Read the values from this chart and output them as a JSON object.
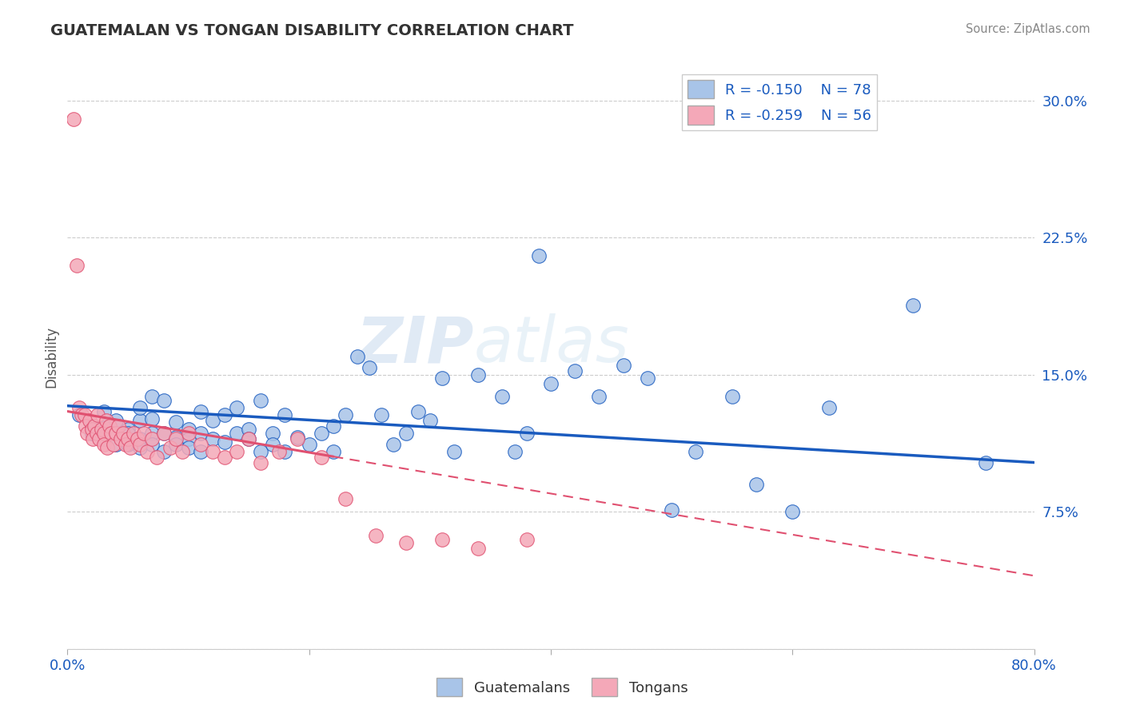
{
  "title": "GUATEMALAN VS TONGAN DISABILITY CORRELATION CHART",
  "source": "Source: ZipAtlas.com",
  "ylabel": "Disability",
  "xlim": [
    0.0,
    0.8
  ],
  "ylim": [
    0.0,
    0.32
  ],
  "yticks": [
    0.0,
    0.075,
    0.15,
    0.225,
    0.3
  ],
  "ytick_labels": [
    "",
    "7.5%",
    "15.0%",
    "22.5%",
    "30.0%"
  ],
  "xticks": [
    0.0,
    0.2,
    0.4,
    0.6,
    0.8
  ],
  "xtick_labels": [
    "0.0%",
    "",
    "",
    "",
    "80.0%"
  ],
  "legend_blue_label": "R = -0.150    N = 78",
  "legend_pink_label": "R = -0.259    N = 56",
  "bottom_legend_blue": "Guatemalans",
  "bottom_legend_pink": "Tongans",
  "blue_color": "#a8c4e8",
  "pink_color": "#f4a8b8",
  "line_blue": "#1a5bbf",
  "line_pink": "#e05070",
  "watermark_zip": "ZIP",
  "watermark_atlas": "atlas",
  "blue_scatter_x": [
    0.01,
    0.02,
    0.02,
    0.03,
    0.03,
    0.03,
    0.04,
    0.04,
    0.05,
    0.05,
    0.05,
    0.06,
    0.06,
    0.06,
    0.06,
    0.07,
    0.07,
    0.07,
    0.07,
    0.08,
    0.08,
    0.08,
    0.09,
    0.09,
    0.09,
    0.1,
    0.1,
    0.1,
    0.11,
    0.11,
    0.11,
    0.12,
    0.12,
    0.13,
    0.13,
    0.14,
    0.14,
    0.15,
    0.15,
    0.16,
    0.16,
    0.17,
    0.17,
    0.18,
    0.18,
    0.19,
    0.2,
    0.21,
    0.22,
    0.22,
    0.23,
    0.24,
    0.25,
    0.26,
    0.27,
    0.28,
    0.29,
    0.3,
    0.31,
    0.32,
    0.34,
    0.36,
    0.37,
    0.38,
    0.39,
    0.4,
    0.42,
    0.44,
    0.46,
    0.48,
    0.5,
    0.52,
    0.55,
    0.57,
    0.6,
    0.63,
    0.7,
    0.76
  ],
  "blue_scatter_y": [
    0.128,
    0.118,
    0.122,
    0.13,
    0.121,
    0.115,
    0.125,
    0.112,
    0.12,
    0.118,
    0.112,
    0.115,
    0.125,
    0.132,
    0.11,
    0.118,
    0.126,
    0.112,
    0.138,
    0.108,
    0.118,
    0.136,
    0.116,
    0.124,
    0.112,
    0.12,
    0.115,
    0.11,
    0.108,
    0.13,
    0.118,
    0.125,
    0.115,
    0.128,
    0.113,
    0.118,
    0.132,
    0.12,
    0.115,
    0.108,
    0.136,
    0.118,
    0.112,
    0.128,
    0.108,
    0.116,
    0.112,
    0.118,
    0.122,
    0.108,
    0.128,
    0.16,
    0.154,
    0.128,
    0.112,
    0.118,
    0.13,
    0.125,
    0.148,
    0.108,
    0.15,
    0.138,
    0.108,
    0.118,
    0.215,
    0.145,
    0.152,
    0.138,
    0.155,
    0.148,
    0.076,
    0.108,
    0.138,
    0.09,
    0.075,
    0.132,
    0.188,
    0.102
  ],
  "pink_scatter_x": [
    0.005,
    0.008,
    0.01,
    0.012,
    0.014,
    0.015,
    0.016,
    0.018,
    0.02,
    0.021,
    0.022,
    0.024,
    0.025,
    0.026,
    0.028,
    0.03,
    0.03,
    0.032,
    0.033,
    0.035,
    0.036,
    0.038,
    0.04,
    0.042,
    0.044,
    0.046,
    0.048,
    0.05,
    0.052,
    0.055,
    0.058,
    0.06,
    0.063,
    0.066,
    0.07,
    0.074,
    0.08,
    0.085,
    0.09,
    0.095,
    0.1,
    0.11,
    0.12,
    0.13,
    0.14,
    0.15,
    0.16,
    0.175,
    0.19,
    0.21,
    0.23,
    0.255,
    0.28,
    0.31,
    0.34,
    0.38
  ],
  "pink_scatter_y": [
    0.29,
    0.21,
    0.132,
    0.128,
    0.128,
    0.122,
    0.118,
    0.125,
    0.12,
    0.115,
    0.122,
    0.118,
    0.128,
    0.115,
    0.12,
    0.118,
    0.112,
    0.125,
    0.11,
    0.122,
    0.118,
    0.112,
    0.118,
    0.122,
    0.115,
    0.118,
    0.112,
    0.115,
    0.11,
    0.118,
    0.115,
    0.112,
    0.118,
    0.108,
    0.115,
    0.105,
    0.118,
    0.11,
    0.115,
    0.108,
    0.118,
    0.112,
    0.108,
    0.105,
    0.108,
    0.115,
    0.102,
    0.108,
    0.115,
    0.105,
    0.082,
    0.062,
    0.058,
    0.06,
    0.055,
    0.06
  ]
}
